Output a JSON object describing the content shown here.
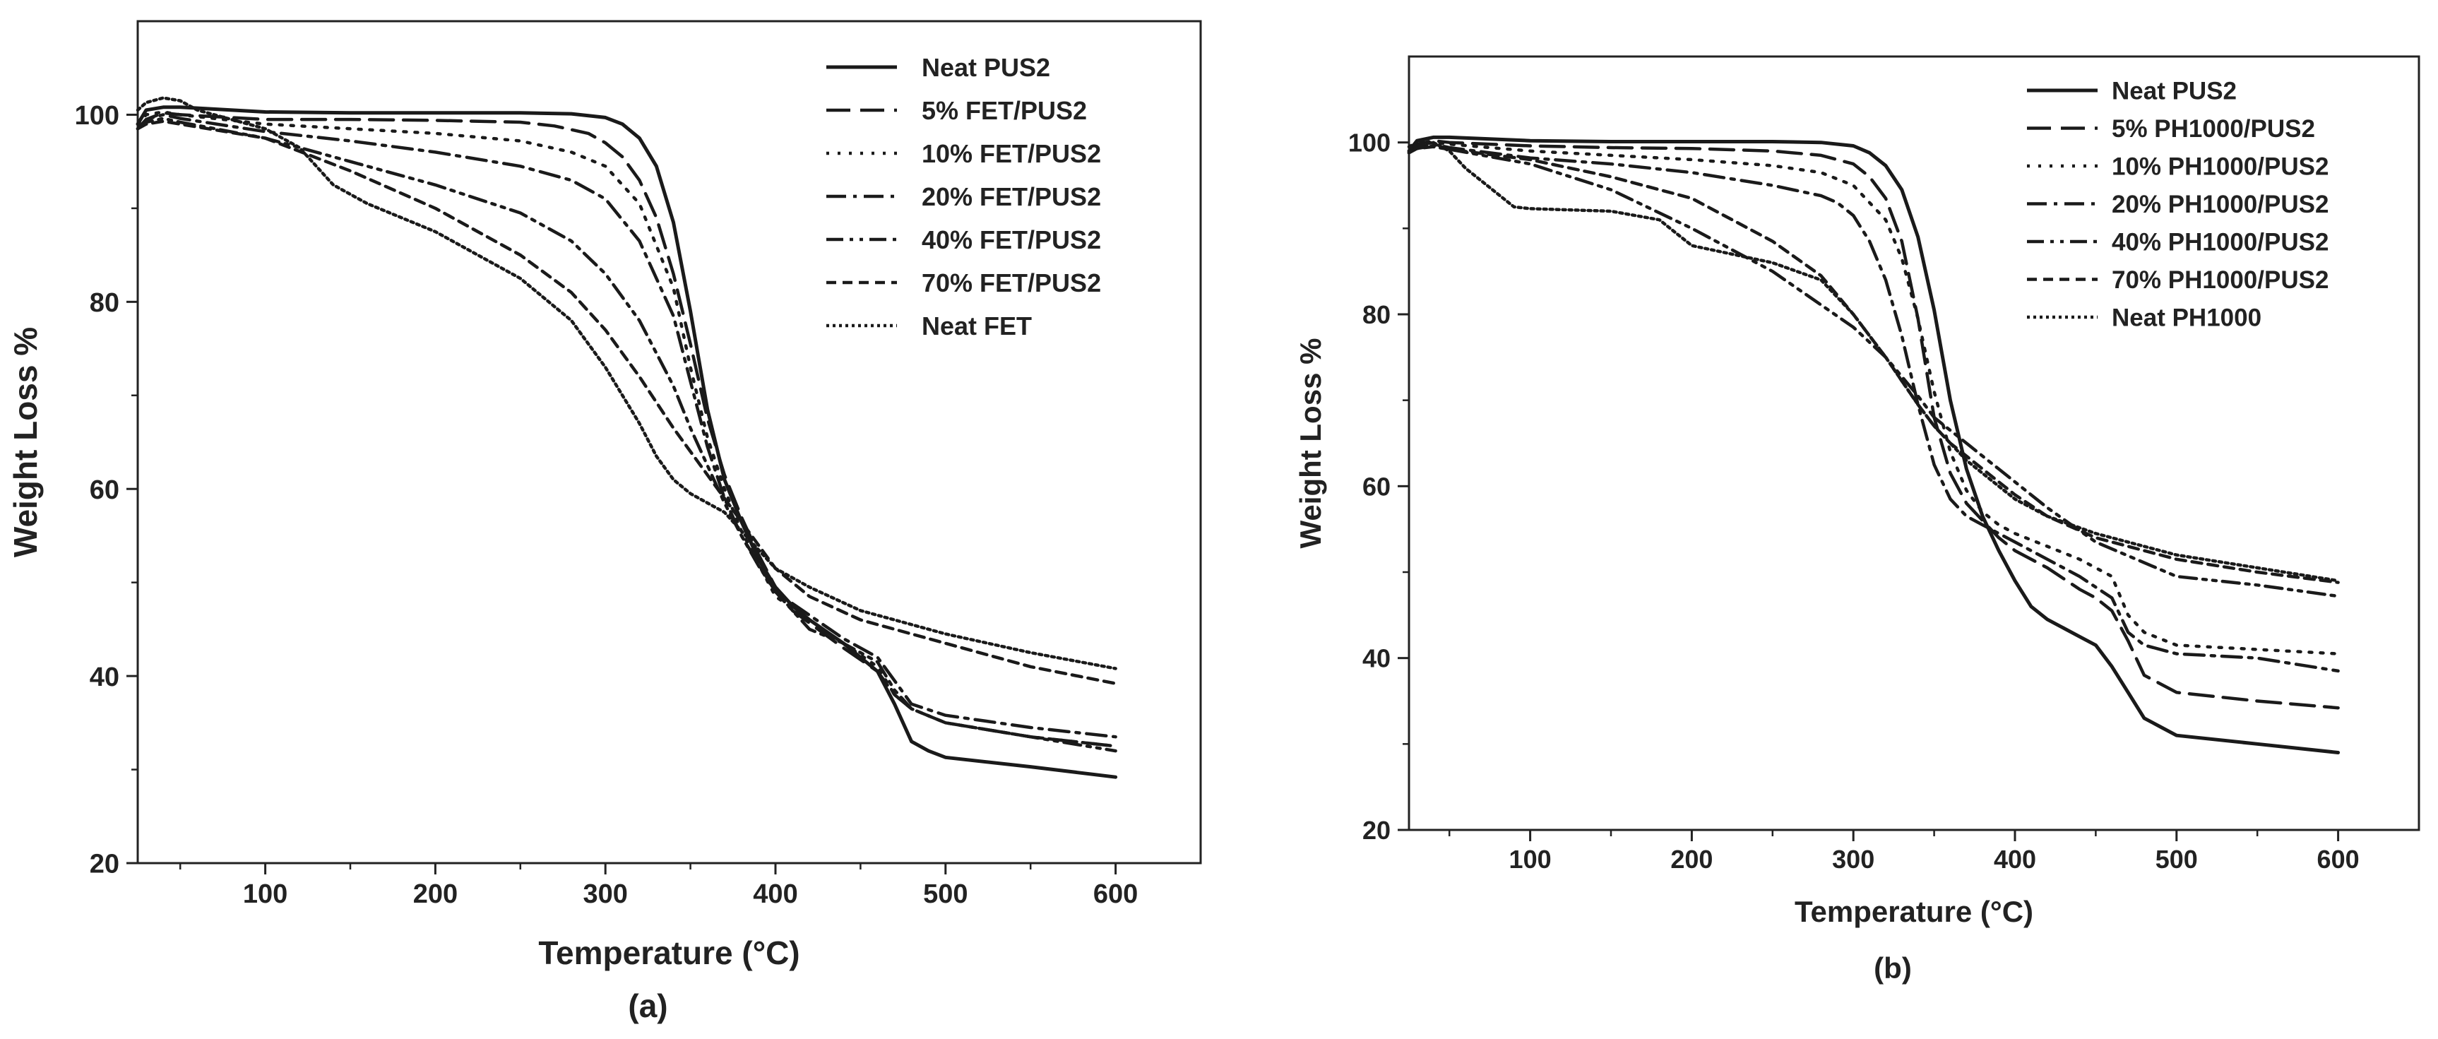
{
  "chart_data": [
    {
      "type": "line",
      "panel_label": "(a)",
      "xlabel": "Temperature (°C)",
      "ylabel": "Weight Loss %",
      "xlim": [
        25,
        650
      ],
      "ylim": [
        20,
        110
      ],
      "xticks": [
        100,
        200,
        300,
        400,
        500,
        600
      ],
      "yticks": [
        20,
        40,
        60,
        80,
        100
      ],
      "legend_position": "top-right",
      "series": [
        {
          "name": "Neat PUS2",
          "dash": "solid",
          "x": [
            25,
            30,
            40,
            50,
            100,
            150,
            200,
            250,
            280,
            300,
            310,
            320,
            330,
            340,
            350,
            360,
            370,
            380,
            390,
            400,
            410,
            420,
            440,
            460,
            470,
            480,
            490,
            500,
            550,
            600
          ],
          "y": [
            99.0,
            100.5,
            100.8,
            100.8,
            100.3,
            100.2,
            100.2,
            100.2,
            100.1,
            99.7,
            99.0,
            97.5,
            94.5,
            88.5,
            79.0,
            68.5,
            61.0,
            56.5,
            52.5,
            49.5,
            47.5,
            46.0,
            43.5,
            40.5,
            37.0,
            33.0,
            32.0,
            31.3,
            30.3,
            29.2
          ]
        },
        {
          "name": "5% FET/PUS2",
          "dash": "long-dash",
          "x": [
            25,
            30,
            40,
            50,
            100,
            150,
            200,
            250,
            270,
            290,
            300,
            310,
            320,
            330,
            340,
            350,
            360,
            370,
            380,
            390,
            400,
            410,
            440,
            460,
            470,
            480,
            500,
            550,
            600
          ],
          "y": [
            98.5,
            99.5,
            100.2,
            100.0,
            99.5,
            99.5,
            99.4,
            99.2,
            98.8,
            98.0,
            97.0,
            95.5,
            93.0,
            89.0,
            83.0,
            75.5,
            67.5,
            61.5,
            57.0,
            53.0,
            49.5,
            47.0,
            43.0,
            40.5,
            38.0,
            36.5,
            35.0,
            33.5,
            32.5
          ]
        },
        {
          "name": "10% FET/PUS2",
          "dash": "dot",
          "x": [
            25,
            30,
            40,
            50,
            100,
            150,
            200,
            250,
            280,
            300,
            320,
            340,
            350,
            360,
            370,
            380,
            390,
            400,
            420,
            440,
            460,
            470,
            480,
            500,
            550,
            600
          ],
          "y": [
            99.0,
            100.0,
            100.3,
            100.0,
            99.0,
            98.5,
            98.0,
            97.2,
            96.0,
            94.5,
            90.5,
            81.5,
            73.0,
            65.5,
            60.0,
            55.5,
            52.0,
            48.5,
            46.0,
            43.5,
            41.0,
            38.0,
            36.5,
            35.0,
            33.5,
            32.5
          ]
        },
        {
          "name": "20% FET/PUS2",
          "dash": "dash-dot",
          "x": [
            25,
            30,
            40,
            50,
            100,
            150,
            200,
            250,
            280,
            300,
            320,
            340,
            350,
            360,
            370,
            380,
            390,
            400,
            420,
            440,
            460,
            470,
            480,
            500,
            550,
            600
          ],
          "y": [
            98.5,
            99.5,
            100.0,
            99.6,
            98.2,
            97.2,
            96.0,
            94.5,
            93.0,
            91.0,
            86.5,
            78.5,
            71.5,
            64.5,
            59.0,
            55.0,
            52.0,
            49.0,
            46.5,
            44.0,
            42.0,
            39.5,
            37.0,
            35.8,
            34.5,
            33.5
          ]
        },
        {
          "name": "40% FET/PUS2",
          "dash": "dash-dot-dot",
          "x": [
            25,
            30,
            40,
            50,
            100,
            150,
            200,
            250,
            280,
            300,
            320,
            340,
            350,
            360,
            370,
            380,
            390,
            400,
            410,
            420,
            440,
            460,
            470,
            480,
            500,
            550,
            600
          ],
          "y": [
            98.5,
            99.2,
            99.6,
            99.2,
            97.5,
            95.0,
            92.5,
            89.5,
            86.5,
            83.0,
            78.0,
            71.0,
            66.5,
            62.5,
            58.5,
            55.0,
            51.8,
            49.0,
            47.0,
            45.0,
            43.5,
            41.5,
            38.5,
            36.5,
            35.0,
            33.5,
            32.0
          ]
        },
        {
          "name": "70% FET/PUS2",
          "dash": "short-dash",
          "x": [
            25,
            30,
            40,
            50,
            100,
            150,
            200,
            250,
            280,
            300,
            320,
            340,
            360,
            370,
            380,
            390,
            400,
            420,
            450,
            500,
            550,
            600
          ],
          "y": [
            98.5,
            99.0,
            99.3,
            99.0,
            97.5,
            94.0,
            90.0,
            85.0,
            81.0,
            77.0,
            72.0,
            66.5,
            61.5,
            59.0,
            56.5,
            54.0,
            51.5,
            48.5,
            46.0,
            43.5,
            41.0,
            39.2
          ]
        },
        {
          "name": "Neat FET",
          "dash": "fine-dot",
          "x": [
            25,
            30,
            40,
            50,
            60,
            80,
            100,
            120,
            140,
            160,
            200,
            250,
            280,
            300,
            320,
            330,
            340,
            350,
            360,
            370,
            380,
            390,
            400,
            420,
            450,
            500,
            550,
            600
          ],
          "y": [
            100.5,
            101.3,
            101.8,
            101.5,
            100.5,
            99.5,
            98.5,
            96.5,
            92.5,
            90.5,
            87.5,
            82.5,
            78.0,
            73.0,
            67.0,
            63.5,
            61.0,
            59.5,
            58.5,
            57.5,
            55.5,
            53.5,
            51.5,
            49.5,
            47.0,
            44.5,
            42.5,
            40.8
          ]
        }
      ]
    },
    {
      "type": "line",
      "panel_label": "(b)",
      "xlabel": "Temperature (°C)",
      "ylabel": "Weight Loss %",
      "xlim": [
        25,
        650
      ],
      "ylim": [
        20,
        110
      ],
      "xticks": [
        100,
        200,
        300,
        400,
        500,
        600
      ],
      "yticks": [
        20,
        40,
        60,
        80,
        100
      ],
      "legend_position": "top-right",
      "series": [
        {
          "name": "Neat PUS2",
          "dash": "solid",
          "x": [
            25,
            30,
            40,
            50,
            100,
            150,
            200,
            250,
            280,
            300,
            310,
            320,
            330,
            340,
            350,
            360,
            370,
            380,
            390,
            400,
            410,
            420,
            440,
            450,
            460,
            470,
            480,
            490,
            500,
            550,
            600
          ],
          "y": [
            99.0,
            100.2,
            100.6,
            100.6,
            100.2,
            100.1,
            100.1,
            100.1,
            100.0,
            99.6,
            98.8,
            97.3,
            94.5,
            89.0,
            80.5,
            70.0,
            62.0,
            56.5,
            52.5,
            49.0,
            46.0,
            44.5,
            42.5,
            41.5,
            39.0,
            36.0,
            33.0,
            32.0,
            31.0,
            30.0,
            29.0
          ]
        },
        {
          "name": "5% PH1000/PUS2",
          "dash": "long-dash",
          "x": [
            25,
            30,
            40,
            50,
            100,
            150,
            200,
            250,
            280,
            300,
            310,
            320,
            330,
            340,
            350,
            360,
            370,
            380,
            390,
            400,
            420,
            440,
            450,
            460,
            470,
            480,
            500,
            550,
            600
          ],
          "y": [
            98.8,
            99.8,
            100.2,
            100.0,
            99.6,
            99.4,
            99.3,
            99.0,
            98.5,
            97.5,
            96.0,
            93.5,
            88.5,
            79.5,
            68.0,
            61.5,
            58.0,
            56.0,
            54.0,
            52.5,
            50.5,
            48.0,
            47.0,
            45.5,
            42.0,
            38.0,
            36.0,
            35.0,
            34.2
          ]
        },
        {
          "name": "10% PH1000/PUS2",
          "dash": "dot",
          "x": [
            25,
            30,
            40,
            50,
            100,
            150,
            200,
            250,
            280,
            300,
            320,
            330,
            340,
            350,
            360,
            370,
            380,
            390,
            400,
            420,
            440,
            460,
            470,
            480,
            500,
            550,
            600
          ],
          "y": [
            98.8,
            99.6,
            100.0,
            99.8,
            99.0,
            98.5,
            98.0,
            97.3,
            96.5,
            95.0,
            91.0,
            86.5,
            79.5,
            71.0,
            64.0,
            59.5,
            57.0,
            55.5,
            54.5,
            53.0,
            51.5,
            49.5,
            45.0,
            43.0,
            41.5,
            41.0,
            40.5
          ]
        },
        {
          "name": "20% PH1000/PUS2",
          "dash": "dash-dot",
          "x": [
            25,
            30,
            40,
            50,
            100,
            150,
            200,
            250,
            280,
            290,
            300,
            310,
            320,
            330,
            340,
            350,
            360,
            370,
            380,
            390,
            400,
            420,
            440,
            460,
            470,
            480,
            500,
            550,
            600
          ],
          "y": [
            98.8,
            99.5,
            99.8,
            99.4,
            98.2,
            97.5,
            96.5,
            95.0,
            93.8,
            93.0,
            91.5,
            88.5,
            84.0,
            77.5,
            69.5,
            62.5,
            58.5,
            56.5,
            55.5,
            54.5,
            53.5,
            51.5,
            49.5,
            47.0,
            43.0,
            41.5,
            40.5,
            40.0,
            38.5
          ]
        },
        {
          "name": "40% PH1000/PUS2",
          "dash": "dash-dot-dot",
          "x": [
            25,
            30,
            40,
            50,
            100,
            150,
            200,
            250,
            300,
            320,
            340,
            350,
            360,
            370,
            380,
            390,
            400,
            420,
            450,
            500,
            550,
            600
          ],
          "y": [
            98.8,
            99.3,
            99.6,
            99.2,
            97.5,
            94.5,
            90.0,
            85.0,
            78.5,
            75.0,
            70.5,
            68.0,
            66.5,
            65.0,
            63.5,
            62.0,
            60.5,
            57.5,
            53.5,
            49.5,
            48.5,
            47.2
          ]
        },
        {
          "name": "70% PH1000/PUS2",
          "dash": "short-dash",
          "x": [
            25,
            30,
            40,
            50,
            100,
            150,
            200,
            250,
            280,
            300,
            320,
            340,
            350,
            360,
            370,
            380,
            400,
            420,
            450,
            500,
            550,
            600
          ],
          "y": [
            98.8,
            99.3,
            99.5,
            99.2,
            98.0,
            96.0,
            93.5,
            88.5,
            84.5,
            80.0,
            75.0,
            69.5,
            67.0,
            65.0,
            63.5,
            62.0,
            59.0,
            56.5,
            54.0,
            51.5,
            50.0,
            48.8
          ]
        },
        {
          "name": "Neat PH1000",
          "dash": "fine-dot",
          "x": [
            25,
            30,
            40,
            50,
            60,
            80,
            90,
            100,
            150,
            180,
            200,
            250,
            280,
            300,
            320,
            340,
            350,
            360,
            370,
            380,
            400,
            420,
            450,
            500,
            550,
            600
          ],
          "y": [
            99.5,
            100.0,
            100.0,
            99.0,
            97.0,
            94.0,
            92.5,
            92.3,
            92.0,
            91.0,
            88.0,
            86.0,
            84.0,
            80.0,
            75.0,
            69.5,
            67.0,
            65.0,
            63.0,
            61.5,
            58.5,
            56.5,
            54.5,
            52.0,
            50.5,
            49.0
          ]
        }
      ]
    }
  ]
}
